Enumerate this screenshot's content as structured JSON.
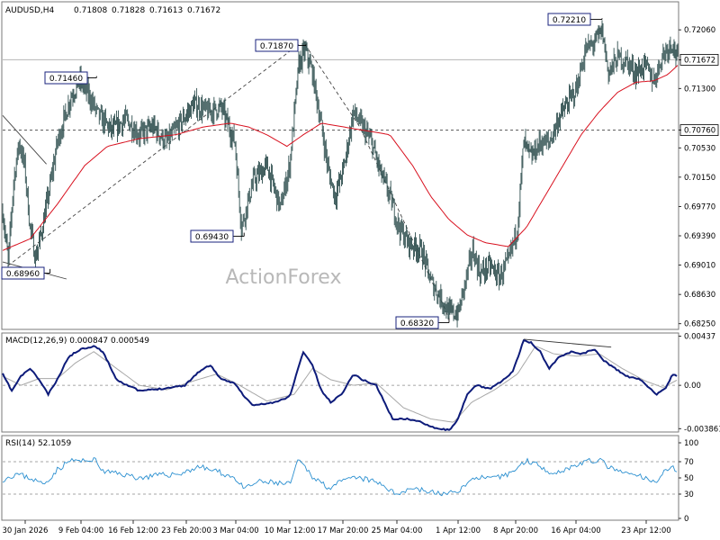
{
  "chart_data": [
    {
      "panel": "price",
      "type": "candlestick",
      "header": {
        "symbol": "AUDUSD,H4",
        "open": "0.71808",
        "high": "0.71828",
        "low": "0.71613",
        "close": "0.71672"
      },
      "watermark": "ActionForex",
      "ylim": [
        0.682,
        0.724
      ],
      "y_ticks": [
        "0.72060",
        "0.71672",
        "0.71300",
        "0.70760",
        "0.70530",
        "0.70150",
        "0.69770",
        "0.69390",
        "0.69010",
        "0.68630",
        "0.68250"
      ],
      "current_price": "0.71672",
      "horizontal_line": "0.70760",
      "annotations": [
        "0.72210",
        "0.71870",
        "0.71460",
        "0.69430",
        "0.68960",
        "0.68320"
      ],
      "x_ticks": [
        "30 Jan 2026",
        "9 Feb 04:00",
        "16 Feb 12:00",
        "23 Feb 20:00",
        "3 Mar 04:00",
        "10 Mar 12:00",
        "17 Mar 20:00",
        "25 Mar 04:00",
        "1 Apr 12:00",
        "8 Apr 20:00",
        "16 Apr 04:00",
        "23 Apr 12:00"
      ],
      "path_keypoints": [
        [
          0,
          0.697
        ],
        [
          6,
          0.6905
        ],
        [
          12,
          0.701
        ],
        [
          18,
          0.706
        ],
        [
          24,
          0.703
        ],
        [
          30,
          0.695
        ],
        [
          36,
          0.691
        ],
        [
          42,
          0.694
        ],
        [
          50,
          0.699
        ],
        [
          60,
          0.706
        ],
        [
          75,
          0.712
        ],
        [
          85,
          0.714
        ],
        [
          95,
          0.712
        ],
        [
          105,
          0.7095
        ],
        [
          120,
          0.7075
        ],
        [
          135,
          0.709
        ],
        [
          150,
          0.707
        ],
        [
          165,
          0.708
        ],
        [
          180,
          0.706
        ],
        [
          195,
          0.7085
        ],
        [
          210,
          0.711
        ],
        [
          225,
          0.71
        ],
        [
          240,
          0.7105
        ],
        [
          255,
          0.706
        ],
        [
          262,
          0.695
        ],
        [
          275,
          0.701
        ],
        [
          290,
          0.703
        ],
        [
          305,
          0.6975
        ],
        [
          315,
          0.703
        ],
        [
          325,
          0.716
        ],
        [
          332,
          0.718
        ],
        [
          340,
          0.715
        ],
        [
          350,
          0.708
        ],
        [
          358,
          0.702
        ],
        [
          365,
          0.699
        ],
        [
          375,
          0.703
        ],
        [
          385,
          0.71
        ],
        [
          395,
          0.708
        ],
        [
          405,
          0.706
        ],
        [
          415,
          0.702
        ],
        [
          425,
          0.699
        ],
        [
          435,
          0.695
        ],
        [
          445,
          0.693
        ],
        [
          460,
          0.692
        ],
        [
          470,
          0.688
        ],
        [
          480,
          0.686
        ],
        [
          490,
          0.684
        ],
        [
          500,
          0.6838
        ],
        [
          508,
          0.688
        ],
        [
          516,
          0.692
        ],
        [
          524,
          0.689
        ],
        [
          535,
          0.69
        ],
        [
          545,
          0.6885
        ],
        [
          555,
          0.6905
        ],
        [
          565,
          0.695
        ],
        [
          572,
          0.706
        ],
        [
          580,
          0.704
        ],
        [
          590,
          0.706
        ],
        [
          600,
          0.706
        ],
        [
          610,
          0.709
        ],
        [
          620,
          0.711
        ],
        [
          630,
          0.713
        ],
        [
          640,
          0.718
        ],
        [
          650,
          0.719
        ],
        [
          658,
          0.7205
        ],
        [
          665,
          0.715
        ],
        [
          675,
          0.717
        ],
        [
          685,
          0.7165
        ],
        [
          695,
          0.715
        ],
        [
          705,
          0.716
        ],
        [
          715,
          0.714
        ],
        [
          725,
          0.7175
        ],
        [
          735,
          0.719
        ],
        [
          741,
          0.7167
        ]
      ],
      "ma_keypoints": [
        [
          0,
          0.692
        ],
        [
          30,
          0.6935
        ],
        [
          60,
          0.698
        ],
        [
          90,
          0.703
        ],
        [
          115,
          0.7055
        ],
        [
          150,
          0.7065
        ],
        [
          190,
          0.707
        ],
        [
          220,
          0.708
        ],
        [
          250,
          0.7085
        ],
        [
          270,
          0.708
        ],
        [
          290,
          0.707
        ],
        [
          312,
          0.7055
        ],
        [
          330,
          0.707
        ],
        [
          350,
          0.7085
        ],
        [
          375,
          0.708
        ],
        [
          400,
          0.7075
        ],
        [
          425,
          0.707
        ],
        [
          450,
          0.703
        ],
        [
          470,
          0.699
        ],
        [
          490,
          0.696
        ],
        [
          510,
          0.694
        ],
        [
          530,
          0.693
        ],
        [
          555,
          0.6925
        ],
        [
          575,
          0.695
        ],
        [
          595,
          0.699
        ],
        [
          615,
          0.703
        ],
        [
          635,
          0.707
        ],
        [
          655,
          0.71
        ],
        [
          675,
          0.7125
        ],
        [
          695,
          0.7138
        ],
        [
          715,
          0.714
        ],
        [
          730,
          0.7148
        ],
        [
          741,
          0.716
        ]
      ]
    },
    {
      "panel": "macd",
      "type": "line",
      "label": "MACD(12,26,9) 0.000847 0.000549",
      "ylim": [
        -0.004,
        0.0045
      ],
      "y_ticks": [
        "0.00437",
        "0.00",
        "-0.003861"
      ],
      "macd_keypoints": [
        [
          0,
          0.001
        ],
        [
          10,
          -0.0005
        ],
        [
          20,
          0.0008
        ],
        [
          30,
          0.0015
        ],
        [
          40,
          0.0005
        ],
        [
          50,
          -0.0008
        ],
        [
          60,
          0.0005
        ],
        [
          72,
          0.0025
        ],
        [
          85,
          0.0032
        ],
        [
          100,
          0.0035
        ],
        [
          110,
          0.003
        ],
        [
          125,
          0.0005
        ],
        [
          150,
          -0.0005
        ],
        [
          175,
          -0.0003
        ],
        [
          200,
          0.0
        ],
        [
          215,
          0.0012
        ],
        [
          228,
          0.0018
        ],
        [
          240,
          0.0005
        ],
        [
          255,
          0.0002
        ],
        [
          265,
          -0.001
        ],
        [
          275,
          -0.0018
        ],
        [
          300,
          -0.0015
        ],
        [
          315,
          -0.001
        ],
        [
          330,
          0.003
        ],
        [
          340,
          0.0018
        ],
        [
          350,
          -0.0005
        ],
        [
          360,
          -0.0015
        ],
        [
          372,
          -0.0008
        ],
        [
          385,
          0.001
        ],
        [
          395,
          0.0005
        ],
        [
          410,
          0.0
        ],
        [
          428,
          -0.003
        ],
        [
          445,
          -0.003
        ],
        [
          460,
          -0.0033
        ],
        [
          475,
          -0.0038
        ],
        [
          490,
          -0.004
        ],
        [
          500,
          -0.003
        ],
        [
          510,
          -0.0008
        ],
        [
          520,
          0.0
        ],
        [
          535,
          -0.0003
        ],
        [
          550,
          0.0005
        ],
        [
          560,
          0.0012
        ],
        [
          572,
          0.004
        ],
        [
          580,
          0.0038
        ],
        [
          590,
          0.003
        ],
        [
          600,
          0.0015
        ],
        [
          610,
          0.0025
        ],
        [
          625,
          0.003
        ],
        [
          635,
          0.0028
        ],
        [
          650,
          0.0032
        ],
        [
          660,
          0.0022
        ],
        [
          672,
          0.0015
        ],
        [
          685,
          0.0008
        ],
        [
          700,
          0.0005
        ],
        [
          718,
          -0.0008
        ],
        [
          728,
          -0.0003
        ],
        [
          735,
          0.001
        ],
        [
          741,
          0.0008
        ]
      ],
      "signal_keypoints": [
        [
          0,
          0.0008
        ],
        [
          20,
          0.0
        ],
        [
          40,
          0.0006
        ],
        [
          60,
          0.0006
        ],
        [
          80,
          0.002
        ],
        [
          100,
          0.003
        ],
        [
          125,
          0.0015
        ],
        [
          150,
          0.0
        ],
        [
          180,
          -0.0004
        ],
        [
          210,
          0.0004
        ],
        [
          235,
          0.001
        ],
        [
          260,
          0.0
        ],
        [
          290,
          -0.0014
        ],
        [
          320,
          -0.0008
        ],
        [
          340,
          0.0015
        ],
        [
          360,
          0.0005
        ],
        [
          385,
          0.0
        ],
        [
          410,
          0.0002
        ],
        [
          440,
          -0.002
        ],
        [
          470,
          -0.003
        ],
        [
          495,
          -0.0033
        ],
        [
          515,
          -0.0015
        ],
        [
          540,
          -0.0004
        ],
        [
          565,
          0.001
        ],
        [
          585,
          0.0035
        ],
        [
          605,
          0.0028
        ],
        [
          630,
          0.0026
        ],
        [
          655,
          0.0028
        ],
        [
          680,
          0.0015
        ],
        [
          705,
          0.0004
        ],
        [
          725,
          -0.0002
        ],
        [
          741,
          0.0005
        ]
      ],
      "divergence_line": [
        [
          572,
          0.0041
        ],
        [
          668,
          0.0034
        ]
      ]
    },
    {
      "panel": "rsi",
      "type": "line",
      "label": "RSI(14) 52.1059",
      "ylim": [
        0,
        100
      ],
      "y_ticks": [
        "100",
        "70",
        "50",
        "30",
        "0"
      ],
      "reference_lines": [
        70,
        30
      ],
      "rsi_keypoints": [
        [
          0,
          48
        ],
        [
          15,
          55
        ],
        [
          30,
          50
        ],
        [
          45,
          42
        ],
        [
          60,
          60
        ],
        [
          75,
          72
        ],
        [
          90,
          70
        ],
        [
          100,
          74
        ],
        [
          110,
          58
        ],
        [
          130,
          55
        ],
        [
          150,
          50
        ],
        [
          170,
          53
        ],
        [
          195,
          55
        ],
        [
          215,
          64
        ],
        [
          235,
          58
        ],
        [
          255,
          50
        ],
        [
          265,
          36
        ],
        [
          280,
          45
        ],
        [
          300,
          44
        ],
        [
          315,
          42
        ],
        [
          325,
          72
        ],
        [
          340,
          52
        ],
        [
          358,
          38
        ],
        [
          372,
          45
        ],
        [
          385,
          50
        ],
        [
          400,
          48
        ],
        [
          420,
          40
        ],
        [
          430,
          30
        ],
        [
          450,
          38
        ],
        [
          470,
          32
        ],
        [
          490,
          30
        ],
        [
          505,
          38
        ],
        [
          520,
          52
        ],
        [
          535,
          48
        ],
        [
          550,
          52
        ],
        [
          565,
          62
        ],
        [
          575,
          72
        ],
        [
          590,
          65
        ],
        [
          605,
          55
        ],
        [
          620,
          62
        ],
        [
          640,
          70
        ],
        [
          655,
          72
        ],
        [
          670,
          60
        ],
        [
          685,
          55
        ],
        [
          700,
          52
        ],
        [
          715,
          44
        ],
        [
          728,
          60
        ],
        [
          735,
          66
        ],
        [
          741,
          52
        ]
      ]
    }
  ]
}
